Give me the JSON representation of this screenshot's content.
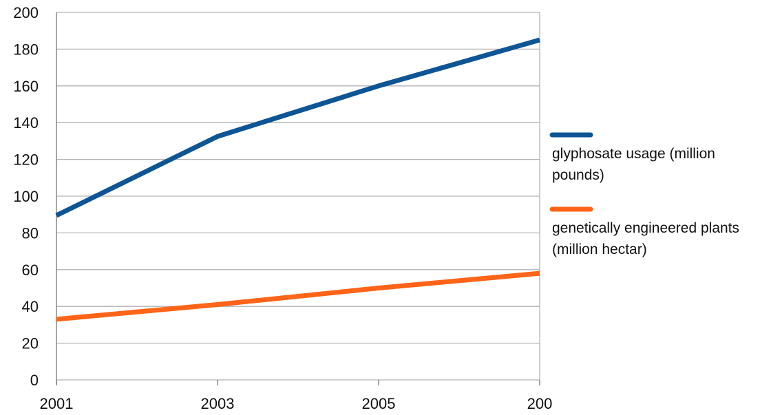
{
  "chart_data": {
    "type": "line",
    "x": [
      "2001",
      "2003",
      "2005",
      "200"
    ],
    "series": [
      {
        "name": "glyphosate usage (million pounds)",
        "values": [
          89.5,
          132.5,
          160,
          185
        ],
        "color": "#0e5595"
      },
      {
        "name": "genetically engineered plants (million hectar)",
        "values": [
          33,
          41,
          50,
          58
        ],
        "color": "#ff6418"
      }
    ],
    "y_ticks": [
      "0",
      "20",
      "40",
      "60",
      "80",
      "100",
      "120",
      "140",
      "160",
      "180",
      "200"
    ],
    "ylim": [
      0,
      200
    ],
    "grid": true,
    "legend_position": "right",
    "legend": [
      {
        "lines": [
          "glyphosate usage (million",
          "pounds)"
        ]
      },
      {
        "lines": [
          "genetically engineered plants",
          "(million hectar)"
        ]
      }
    ]
  }
}
